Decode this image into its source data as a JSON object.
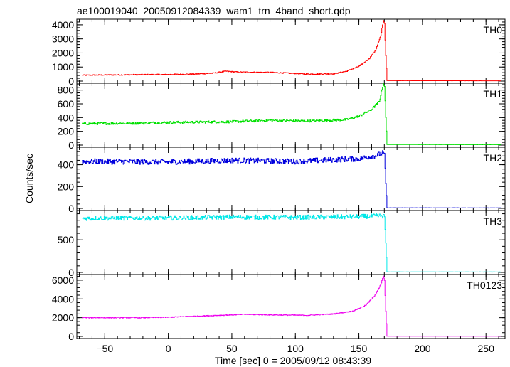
{
  "chart_data": {
    "type": "line",
    "title": "ae100019040_20050912084339_wam1_trn_4band_short.qdp",
    "xlabel": "Time [sec] 0 = 2005/09/12 08:43:39",
    "ylabel": "Counts/sec",
    "xlim": [
      -72,
      265
    ],
    "xticks": [
      -50,
      0,
      50,
      100,
      150,
      200,
      250
    ],
    "grid": false,
    "panels": [
      {
        "name": "TH0",
        "color": "#ff0000",
        "ylim": [
          0,
          4400
        ],
        "yticks": [
          0,
          1000,
          2000,
          3000,
          4000
        ],
        "profile": [
          [
            -68,
            420
          ],
          [
            -30,
            450
          ],
          [
            0,
            470
          ],
          [
            20,
            500
          ],
          [
            35,
            560
          ],
          [
            45,
            700
          ],
          [
            55,
            640
          ],
          [
            80,
            620
          ],
          [
            95,
            560
          ],
          [
            110,
            500
          ],
          [
            130,
            520
          ],
          [
            140,
            700
          ],
          [
            150,
            1050
          ],
          [
            158,
            1600
          ],
          [
            163,
            2200
          ],
          [
            167,
            3200
          ],
          [
            169,
            4300
          ],
          [
            170,
            4100
          ],
          [
            171,
            1800
          ],
          [
            172,
            30
          ],
          [
            262,
            20
          ]
        ],
        "noise": 35
      },
      {
        "name": "TH1",
        "color": "#00e000",
        "ylim": [
          0,
          900
        ],
        "yticks": [
          0,
          200,
          400,
          600,
          800
        ],
        "profile": [
          [
            -68,
            310
          ],
          [
            -20,
            320
          ],
          [
            0,
            330
          ],
          [
            50,
            340
          ],
          [
            80,
            360
          ],
          [
            110,
            350
          ],
          [
            140,
            370
          ],
          [
            150,
            420
          ],
          [
            160,
            520
          ],
          [
            166,
            640
          ],
          [
            169,
            900
          ],
          [
            170,
            860
          ],
          [
            171,
            400
          ],
          [
            172,
            8
          ],
          [
            262,
            6
          ]
        ],
        "noise": 18
      },
      {
        "name": "TH2",
        "color": "#0000dd",
        "ylim": [
          0,
          560
        ],
        "yticks": [
          0,
          200,
          400
        ],
        "profile": [
          [
            -68,
            430
          ],
          [
            0,
            425
          ],
          [
            50,
            440
          ],
          [
            100,
            430
          ],
          [
            150,
            455
          ],
          [
            165,
            490
          ],
          [
            169,
            510
          ],
          [
            170,
            480
          ],
          [
            171,
            230
          ],
          [
            172,
            5
          ],
          [
            262,
            4
          ]
        ],
        "noise": 25
      },
      {
        "name": "TH3",
        "color": "#00e8e8",
        "ylim": [
          0,
          950
        ],
        "yticks": [
          0,
          500
        ],
        "profile": [
          [
            -68,
            830
          ],
          [
            0,
            835
          ],
          [
            50,
            850
          ],
          [
            100,
            845
          ],
          [
            150,
            855
          ],
          [
            168,
            870
          ],
          [
            170,
            860
          ],
          [
            171,
            450
          ],
          [
            172,
            8
          ],
          [
            262,
            6
          ]
        ],
        "noise": 35
      },
      {
        "name": "TH0123",
        "color": "#ee00ee",
        "ylim": [
          0,
          6600
        ],
        "yticks": [
          0,
          2000,
          4000,
          6000
        ],
        "profile": [
          [
            -68,
            2000
          ],
          [
            -20,
            2000
          ],
          [
            0,
            2050
          ],
          [
            30,
            2200
          ],
          [
            60,
            2350
          ],
          [
            80,
            2300
          ],
          [
            110,
            2250
          ],
          [
            130,
            2400
          ],
          [
            145,
            2700
          ],
          [
            155,
            3300
          ],
          [
            162,
            4300
          ],
          [
            167,
            5500
          ],
          [
            169,
            6400
          ],
          [
            170,
            6000
          ],
          [
            171,
            2700
          ],
          [
            172,
            20
          ],
          [
            262,
            15
          ]
        ],
        "noise": 45
      }
    ]
  }
}
